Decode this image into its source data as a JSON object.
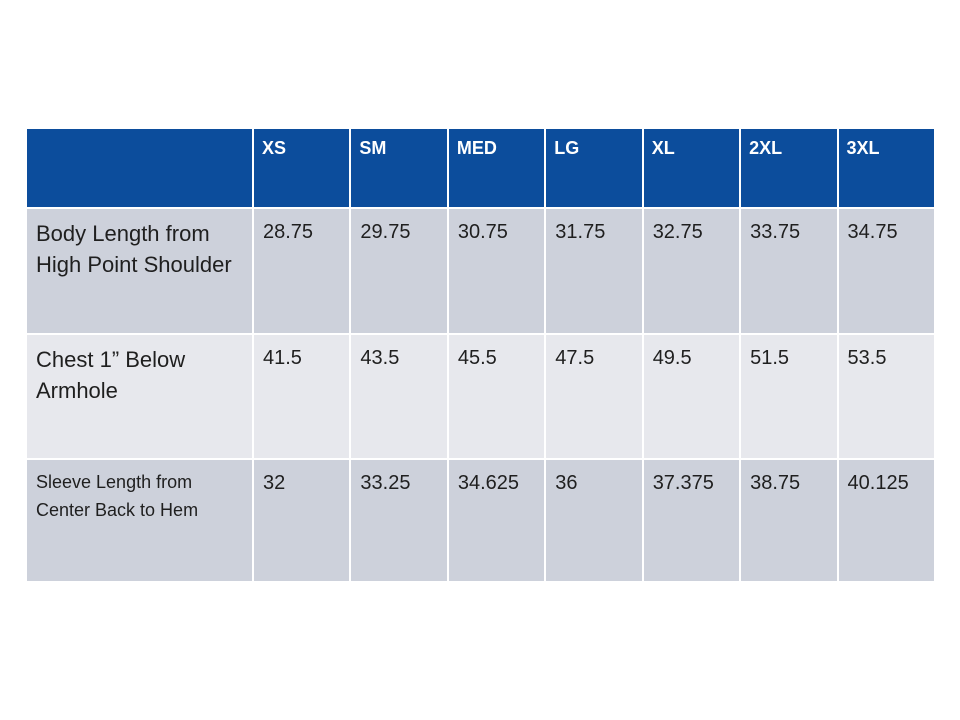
{
  "table": {
    "header": {
      "corner": "",
      "columns": [
        "XS",
        "SM",
        "MED",
        "LG",
        "XL",
        "2XL",
        "3XL"
      ]
    },
    "rows": [
      {
        "label": "Body Length from High Point Shoulder",
        "values": [
          "28.75",
          "29.75",
          "30.75",
          "31.75",
          "32.75",
          "33.75",
          "34.75"
        ]
      },
      {
        "label": "Chest 1” Below Armhole",
        "values": [
          "41.5",
          "43.5",
          "45.5",
          "47.5",
          "49.5",
          "51.5",
          "53.5"
        ]
      },
      {
        "label": "Sleeve Length from Center Back to Hem",
        "values": [
          "32",
          "33.25",
          "34.625",
          "36",
          "37.375",
          "38.75",
          "40.125"
        ]
      }
    ],
    "colors": {
      "header_bg": "#0C4D9C",
      "header_text": "#FFFFFF",
      "row_dark_bg": "#CDD1DB",
      "row_light_bg": "#E7E8ED",
      "body_text": "#1F1F1F",
      "border": "#FFFFFF"
    }
  }
}
